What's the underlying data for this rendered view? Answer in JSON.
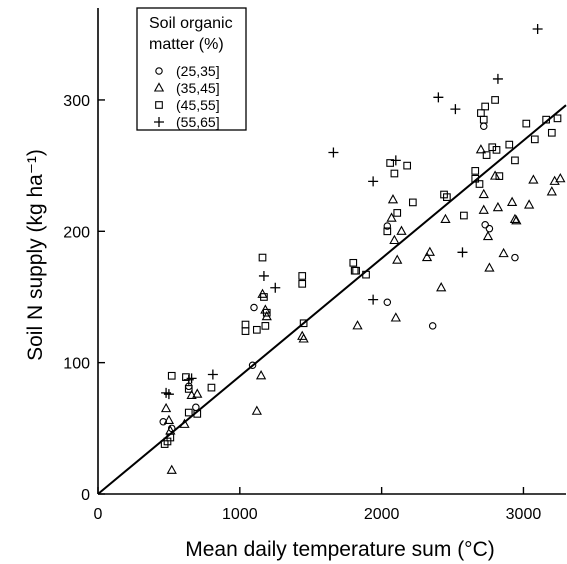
{
  "chart_data": {
    "type": "scatter",
    "xlabel": "Mean daily temperature sum (°C)",
    "ylabel": "Soil N supply (kg ha⁻¹)",
    "xlim": [
      0,
      3300
    ],
    "ylim": [
      0,
      370
    ],
    "xticks": [
      0,
      1000,
      2000,
      3000
    ],
    "yticks": [
      0,
      100,
      200,
      300
    ],
    "x_tick_labels": [
      "0",
      "1000",
      "2000",
      "3000"
    ],
    "y_tick_labels": [
      "0",
      "100",
      "200",
      "300"
    ],
    "grid": false,
    "legend_title": "Soil organic matter (%)",
    "legend_title_lines": [
      "Soil organic",
      "matter (%)"
    ],
    "legend_position": "top-left",
    "fit_line": {
      "x": [
        0,
        3300
      ],
      "y": [
        0,
        296
      ]
    },
    "series": [
      {
        "name": "(25,35]",
        "marker": "circle",
        "points": [
          [
            460,
            55
          ],
          [
            520,
            50
          ],
          [
            690,
            66
          ],
          [
            1100,
            142
          ],
          [
            1090,
            98
          ],
          [
            2040,
            146
          ],
          [
            2360,
            128
          ],
          [
            2720,
            280
          ],
          [
            2730,
            205
          ],
          [
            2760,
            202
          ],
          [
            2940,
            180
          ],
          [
            2040,
            204
          ],
          [
            640,
            82
          ]
        ]
      },
      {
        "name": "(35,45]",
        "marker": "triangle",
        "points": [
          [
            480,
            65
          ],
          [
            500,
            56
          ],
          [
            510,
            48
          ],
          [
            520,
            18
          ],
          [
            610,
            53
          ],
          [
            660,
            75
          ],
          [
            700,
            76
          ],
          [
            1120,
            63
          ],
          [
            1150,
            90
          ],
          [
            1160,
            152
          ],
          [
            1180,
            140
          ],
          [
            1190,
            135
          ],
          [
            1440,
            120
          ],
          [
            1450,
            118
          ],
          [
            1830,
            128
          ],
          [
            2070,
            210
          ],
          [
            2080,
            224
          ],
          [
            2090,
            193
          ],
          [
            2100,
            134
          ],
          [
            2110,
            178
          ],
          [
            2140,
            200
          ],
          [
            2320,
            180
          ],
          [
            2340,
            184
          ],
          [
            2420,
            157
          ],
          [
            2450,
            209
          ],
          [
            2720,
            216
          ],
          [
            2750,
            196
          ],
          [
            2760,
            172
          ],
          [
            2820,
            218
          ],
          [
            2860,
            183
          ],
          [
            2920,
            222
          ],
          [
            2940,
            209
          ],
          [
            2950,
            208
          ],
          [
            3040,
            220
          ],
          [
            3070,
            239
          ],
          [
            3200,
            230
          ],
          [
            3220,
            238
          ],
          [
            3260,
            240
          ],
          [
            2700,
            262
          ],
          [
            2800,
            242
          ],
          [
            2720,
            228
          ]
        ]
      },
      {
        "name": "(45,55]",
        "marker": "square",
        "points": [
          [
            470,
            38
          ],
          [
            490,
            40
          ],
          [
            510,
            43
          ],
          [
            520,
            90
          ],
          [
            620,
            89
          ],
          [
            640,
            80
          ],
          [
            640,
            62
          ],
          [
            700,
            61
          ],
          [
            800,
            81
          ],
          [
            1040,
            124
          ],
          [
            1040,
            129
          ],
          [
            1120,
            125
          ],
          [
            1160,
            180
          ],
          [
            1170,
            150
          ],
          [
            1180,
            128
          ],
          [
            1190,
            138
          ],
          [
            1440,
            166
          ],
          [
            1440,
            160
          ],
          [
            1450,
            130
          ],
          [
            1800,
            176
          ],
          [
            1810,
            170
          ],
          [
            1820,
            170
          ],
          [
            1890,
            167
          ],
          [
            2040,
            200
          ],
          [
            2060,
            252
          ],
          [
            2090,
            244
          ],
          [
            2110,
            214
          ],
          [
            2180,
            250
          ],
          [
            2220,
            222
          ],
          [
            2440,
            228
          ],
          [
            2460,
            226
          ],
          [
            2580,
            212
          ],
          [
            2660,
            246
          ],
          [
            2690,
            236
          ],
          [
            2700,
            290
          ],
          [
            2720,
            285
          ],
          [
            2730,
            295
          ],
          [
            2740,
            258
          ],
          [
            2780,
            264
          ],
          [
            2800,
            300
          ],
          [
            2810,
            262
          ],
          [
            2830,
            242
          ],
          [
            2900,
            266
          ],
          [
            2940,
            254
          ],
          [
            3020,
            282
          ],
          [
            3080,
            270
          ],
          [
            3160,
            285
          ],
          [
            3200,
            275
          ],
          [
            3240,
            286
          ],
          [
            2660,
            240
          ]
        ]
      },
      {
        "name": "(55,65]",
        "marker": "plus",
        "points": [
          [
            480,
            77
          ],
          [
            500,
            76
          ],
          [
            640,
            87
          ],
          [
            660,
            88
          ],
          [
            810,
            91
          ],
          [
            1170,
            166
          ],
          [
            1250,
            157
          ],
          [
            1660,
            260
          ],
          [
            1940,
            238
          ],
          [
            1940,
            148
          ],
          [
            2100,
            254
          ],
          [
            2400,
            302
          ],
          [
            2520,
            293
          ],
          [
            2570,
            184
          ],
          [
            2820,
            316
          ],
          [
            3100,
            354
          ]
        ]
      }
    ]
  }
}
